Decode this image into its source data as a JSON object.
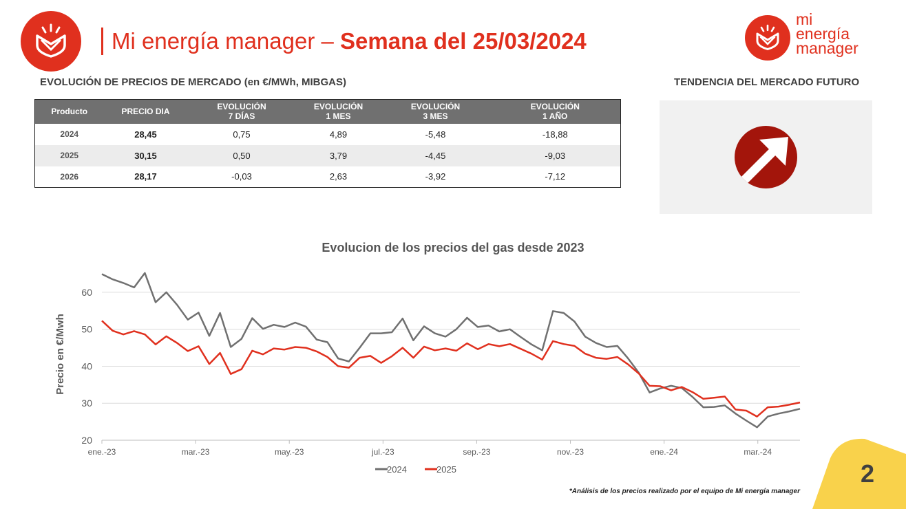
{
  "header": {
    "title_light": "Mi energía manager –",
    "title_bold": "Semana del 25/03/2024",
    "brand_lines": [
      "mi",
      "energía",
      "manager"
    ]
  },
  "market": {
    "heading": "EVOLUCIÓN DE PRECIOS DE MERCADO (en €/MWh, MIBGAS)",
    "columns": [
      "Producto",
      "PRECIO DIA",
      "EVOLUCIÓN 7 DÍAS",
      "EVOLUCIÓN 1 MES",
      "EVOLUCIÓN 3 MES",
      "EVOLUCIÓN 1 AÑO"
    ],
    "column_lines": [
      [
        "Producto"
      ],
      [
        "PRECIO DIA"
      ],
      [
        "EVOLUCIÓN",
        "7 DÍAS"
      ],
      [
        "EVOLUCIÓN",
        "1 MES"
      ],
      [
        "EVOLUCIÓN",
        "3 MES"
      ],
      [
        "EVOLUCIÓN",
        "1 AÑO"
      ]
    ],
    "rows": [
      [
        "2024",
        "28,45",
        "0,75",
        "4,89",
        "-5,48",
        "-18,88"
      ],
      [
        "2025",
        "30,15",
        "0,50",
        "3,79",
        "-4,45",
        "-9,03"
      ],
      [
        "2026",
        "28,17",
        "-0,03",
        "2,63",
        "-3,92",
        "-7,12"
      ]
    ]
  },
  "futures": {
    "heading": "TENDENCIA DEL MERCADO FUTURO",
    "trend": "up",
    "trend_icon": "arrow-up-right-icon"
  },
  "chart_data": {
    "type": "line",
    "title": "Evolucion de los precios del gas desde 2023",
    "ylabel": "Precio en €/Mwh",
    "ylim": [
      20,
      65
    ],
    "yticks": [
      20,
      30,
      40,
      50,
      60
    ],
    "xticks": [
      "ene.-23",
      "mar.-23",
      "may.-23",
      "jul.-23",
      "sep.-23",
      "nov.-23",
      "ene.-24",
      "mar.-24"
    ],
    "grid": true,
    "legend": "bottom",
    "series": [
      {
        "name": "2024",
        "color": "#707070",
        "values": [
          64.9,
          63.5,
          62.5,
          61.3,
          65.2,
          57.3,
          60.0,
          56.6,
          52.6,
          54.5,
          48.2,
          54.4,
          45.2,
          47.4,
          53.0,
          50.1,
          51.2,
          50.6,
          51.8,
          50.7,
          47.2,
          46.5,
          42.1,
          41.3,
          45.0,
          48.9,
          48.9,
          49.2,
          52.9,
          47.0,
          50.8,
          48.9,
          48.0,
          50.0,
          53.1,
          50.6,
          51.0,
          49.4,
          50.0,
          47.9,
          45.9,
          44.3,
          54.9,
          54.4,
          52.1,
          48.0,
          46.3,
          45.2,
          45.5,
          42.1,
          38.2,
          32.9,
          34.0,
          34.7,
          34.1,
          31.7,
          28.9,
          29.0,
          29.4,
          27.2,
          25.3,
          23.5,
          26.4,
          27.2,
          27.8,
          28.5
        ]
      },
      {
        "name": "2025",
        "color": "#e0301e",
        "values": [
          52.3,
          49.6,
          48.6,
          49.5,
          48.6,
          45.9,
          48.1,
          46.3,
          44.1,
          45.4,
          40.6,
          43.6,
          37.9,
          39.2,
          44.2,
          43.2,
          44.8,
          44.5,
          45.2,
          45.0,
          44.0,
          42.5,
          40.0,
          39.6,
          42.3,
          42.8,
          40.9,
          42.7,
          45.0,
          42.3,
          45.3,
          44.3,
          44.8,
          44.2,
          46.2,
          44.6,
          46.0,
          45.4,
          46.0,
          44.7,
          43.4,
          41.8,
          46.8,
          46.0,
          45.5,
          43.4,
          42.3,
          42.0,
          42.5,
          40.5,
          38.0,
          34.7,
          34.6,
          33.5,
          34.4,
          33.0,
          31.2,
          31.5,
          31.8,
          28.3,
          28.0,
          26.4,
          28.9,
          29.1,
          29.6,
          30.2
        ]
      }
    ]
  },
  "footer": {
    "note": "*Análisis de los precios realizado por el equipo de Mi energía manager",
    "page_number": "2",
    "accent": "#f9d24b"
  }
}
